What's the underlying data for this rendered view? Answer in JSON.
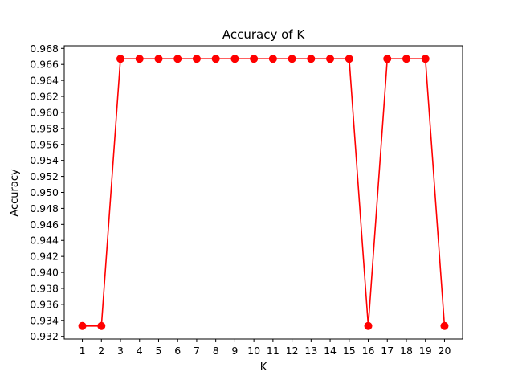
{
  "chart_data": {
    "type": "line",
    "title": "Accuracy of K",
    "xlabel": "K",
    "ylabel": "Accuracy",
    "x": [
      1,
      2,
      3,
      4,
      5,
      6,
      7,
      8,
      9,
      10,
      11,
      12,
      13,
      14,
      15,
      16,
      17,
      18,
      19,
      20
    ],
    "series": [
      {
        "values": [
          0.9333,
          0.9333,
          0.9667,
          0.9667,
          0.9667,
          0.9667,
          0.9667,
          0.9667,
          0.9667,
          0.9667,
          0.9667,
          0.9667,
          0.9667,
          0.9667,
          0.9667,
          0.9333,
          0.9667,
          0.9667,
          0.9667,
          0.9333
        ],
        "color": "#ff0000",
        "marker": "circle"
      }
    ],
    "xlim": [
      0.05,
      20.95
    ],
    "ylim": [
      0.93167,
      0.96833
    ],
    "yticks": [
      0.932,
      0.934,
      0.936,
      0.938,
      0.94,
      0.942,
      0.944,
      0.946,
      0.948,
      0.95,
      0.952,
      0.954,
      0.956,
      0.958,
      0.96,
      0.962,
      0.964,
      0.966,
      0.968
    ],
    "ytick_labels": [
      "0.932",
      "0.934",
      "0.936",
      "0.938",
      "0.940",
      "0.942",
      "0.944",
      "0.946",
      "0.948",
      "0.950",
      "0.952",
      "0.954",
      "0.956",
      "0.958",
      "0.960",
      "0.962",
      "0.964",
      "0.966",
      "0.968"
    ],
    "xtick_labels": [
      "1",
      "2",
      "3",
      "4",
      "5",
      "6",
      "7",
      "8",
      "9",
      "10",
      "11",
      "12",
      "13",
      "14",
      "15",
      "16",
      "17",
      "18",
      "19",
      "20"
    ],
    "grid": false,
    "legend": "none"
  }
}
